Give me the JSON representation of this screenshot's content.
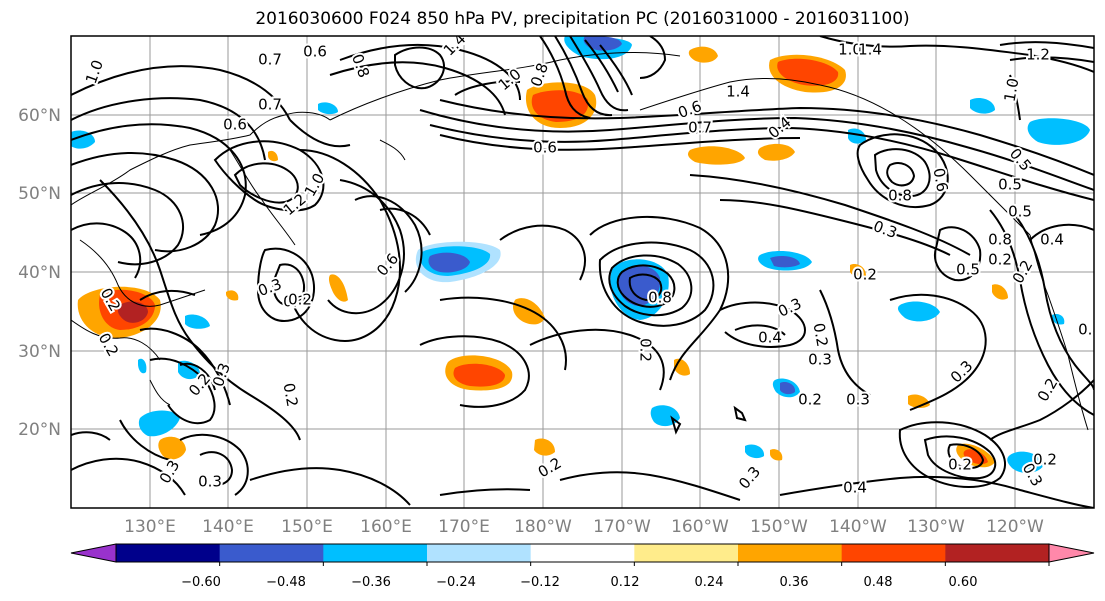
{
  "title": "2016030600 F024 850 hPa PV, precipitation PC (2016031000 - 2016031100)",
  "lat_ticks": [
    "60°N",
    "50°N",
    "40°N",
    "30°N",
    "20°N"
  ],
  "lon_ticks": [
    "130°E",
    "140°E",
    "150°E",
    "160°E",
    "170°E",
    "180°W",
    "170°W",
    "160°W",
    "150°W",
    "140°W",
    "130°W",
    "120°W"
  ],
  "colorbar": {
    "ticks": [
      "−0.60",
      "−0.48",
      "−0.36",
      "−0.24",
      "−0.12",
      "0.12",
      "0.24",
      "0.36",
      "0.48",
      "0.60"
    ],
    "colors": [
      "#9932cc",
      "#00008b",
      "#3a5bcd",
      "#00bfff",
      "#b0e2ff",
      "#ffffff",
      "#ffec8b",
      "#ffa500",
      "#ff4500",
      "#b22222",
      "#ff88aa"
    ]
  },
  "contour_labels": [
    "1.0",
    "0.6",
    "0.7",
    "0.8",
    "1.4",
    "1.0",
    "0.8",
    "0.6",
    "0.7",
    "0.6",
    "1.2",
    "1.0",
    "1.0",
    "1.4",
    "0.6",
    "0.7",
    "0.4",
    "1.2",
    "1.0",
    "1.4",
    "0.8",
    "0.3",
    "0.6",
    "0.3",
    "0.2",
    "0.2",
    "0.3",
    "0.4",
    "0.2",
    "0.3",
    "0.8",
    "0.2",
    "0.2",
    "0.4",
    "0.3",
    "0.2",
    "0.2",
    "0.3",
    "0.2",
    "0.3",
    "0.3",
    "0.2",
    "0.2",
    "0.2",
    "0.2",
    "0.3",
    "0.8",
    "0.2",
    "0.2",
    "0.3",
    "0.4",
    "0.5",
    "0.2",
    "0.5",
    "0.6",
    "0.2",
    "0.3",
    "0.8",
    "0.5",
    "0.5"
  ]
}
